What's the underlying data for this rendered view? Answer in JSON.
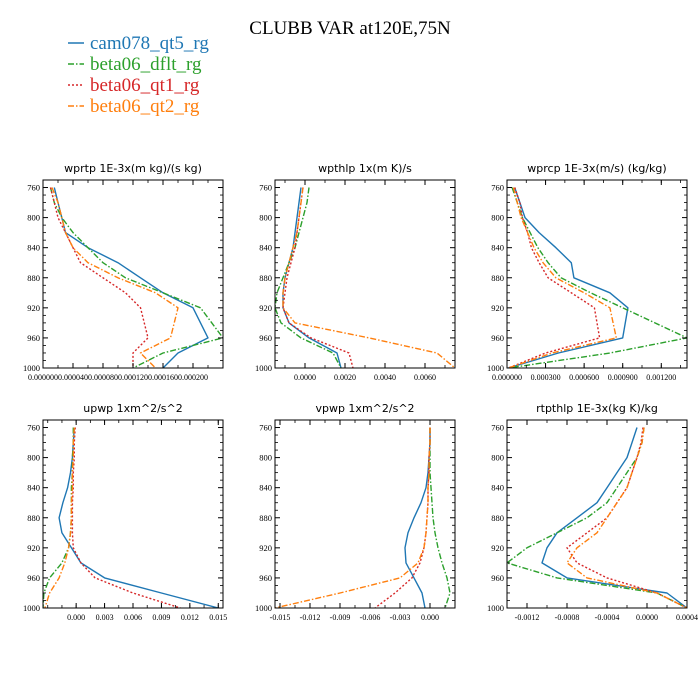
{
  "figure": {
    "title": "CLUBB VAR at120E,75N"
  },
  "legend": [
    {
      "name": "cam078_qt5_rg",
      "color": "#1f77b4",
      "dash": "solid"
    },
    {
      "name": "beta06_dflt_rg",
      "color": "#2ca02c",
      "dash": "dashdot"
    },
    {
      "name": "beta06_qt1_rg",
      "color": "#d62728",
      "dash": "dotted"
    },
    {
      "name": "beta06_qt2_rg",
      "color": "#ff7f0e",
      "dash": "dashdot"
    }
  ],
  "chart_data": [
    {
      "type": "line",
      "title": "wprtp   1E-3x(m kg)/(s kg)",
      "xlim": [
        0,
        0.00024
      ],
      "ylim": [
        1000,
        750
      ],
      "xticks": [
        0,
        4e-05,
        8e-05,
        0.00012,
        0.00016,
        0.0002
      ],
      "xtick_labels": [
        "0.000000",
        "0.000040",
        "0.000080",
        "0.000120",
        "0.000160",
        "0.000200"
      ],
      "yticks": [
        760,
        800,
        840,
        880,
        920,
        960,
        1000
      ],
      "series": [
        {
          "name": "cam078_qt5_rg",
          "x": [
            1.5e-05,
            2e-05,
            2.5e-05,
            3e-05,
            6e-05,
            0.0001,
            0.00013,
            0.00016,
            0.0002,
            0.00022,
            0.00018,
            0.00016
          ],
          "y": [
            760,
            780,
            800,
            820,
            840,
            860,
            880,
            900,
            920,
            960,
            980,
            1000
          ]
        },
        {
          "name": "beta06_dflt_rg",
          "x": [
            1e-05,
            1.5e-05,
            2.5e-05,
            4e-05,
            6e-05,
            8e-05,
            0.00011,
            0.00016,
            0.00021,
            0.00024,
            0.00016,
            0.00012
          ],
          "y": [
            760,
            780,
            800,
            820,
            840,
            860,
            880,
            900,
            920,
            960,
            980,
            1000
          ]
        },
        {
          "name": "beta06_qt1_rg",
          "x": [
            1e-05,
            1.5e-05,
            2e-05,
            3e-05,
            4e-05,
            5e-05,
            8e-05,
            0.00011,
            0.00013,
            0.00014,
            0.00012,
            0.00012
          ],
          "y": [
            760,
            780,
            800,
            820,
            840,
            860,
            880,
            900,
            920,
            960,
            980,
            1000
          ]
        },
        {
          "name": "beta06_qt2_rg",
          "x": [
            1.2e-05,
            2e-05,
            2.5e-05,
            3e-05,
            4e-05,
            6e-05,
            0.0001,
            0.00015,
            0.00018,
            0.00017,
            0.00013,
            0.00015
          ],
          "y": [
            760,
            780,
            800,
            820,
            840,
            860,
            880,
            900,
            920,
            960,
            980,
            1000
          ]
        }
      ]
    },
    {
      "type": "line",
      "title": "wpthlp   1x(m K)/s",
      "xlim": [
        -0.0015,
        0.0075
      ],
      "ylim": [
        1000,
        750
      ],
      "xticks": [
        0,
        0.002,
        0.004,
        0.006
      ],
      "xtick_labels": [
        "0.0000",
        "0.0020",
        "0.0040",
        "0.0060"
      ],
      "yticks": [
        760,
        800,
        840,
        880,
        920,
        960,
        1000
      ],
      "series": [
        {
          "name": "cam078_qt5_rg",
          "x": [
            -0.0002,
            -0.0003,
            -0.0004,
            -0.0005,
            -0.0006,
            -0.0008,
            -0.001,
            -0.0011,
            -0.0011,
            -0.0008,
            0.0002,
            0.0016,
            0.0018
          ],
          "y": [
            760,
            780,
            800,
            820,
            840,
            860,
            880,
            900,
            920,
            940,
            960,
            980,
            1000
          ]
        },
        {
          "name": "beta06_dflt_rg",
          "x": [
            0.0002,
            0.0001,
            -0.0001,
            -0.0003,
            -0.0005,
            -0.0008,
            -0.0011,
            -0.0014,
            -0.0015,
            -0.0012,
            -0.0002,
            0.0014,
            0.0018
          ],
          "y": [
            760,
            780,
            800,
            820,
            840,
            860,
            880,
            900,
            920,
            940,
            960,
            980,
            1000
          ]
        },
        {
          "name": "beta06_qt1_rg",
          "x": [
            -0.0001,
            -0.0002,
            -0.0003,
            -0.0004,
            -0.0005,
            -0.0007,
            -0.0009,
            -0.001,
            -0.0011,
            -0.0008,
            0.0003,
            0.0022,
            0.0024
          ],
          "y": [
            760,
            780,
            800,
            820,
            840,
            860,
            880,
            900,
            920,
            940,
            960,
            980,
            1000
          ]
        },
        {
          "name": "beta06_qt2_rg",
          "x": [
            -0.0001,
            -0.0002,
            -0.0003,
            -0.0004,
            -0.0006,
            -0.0008,
            -0.001,
            -0.0011,
            -0.0011,
            -0.0005,
            0.0032,
            0.0066,
            0.0075
          ],
          "y": [
            760,
            780,
            800,
            820,
            840,
            860,
            880,
            900,
            920,
            940,
            960,
            980,
            1000
          ]
        }
      ]
    },
    {
      "type": "line",
      "title": "wprcp   1E-3x(m/s) (kg/kg)",
      "xlim": [
        0,
        0.0014
      ],
      "ylim": [
        1000,
        750
      ],
      "xticks": [
        0,
        0.0003,
        0.0006,
        0.0009,
        0.0012
      ],
      "xtick_labels": [
        "0.000000",
        "0.000300",
        "0.000600",
        "0.000900",
        "0.001200"
      ],
      "yticks": [
        760,
        800,
        840,
        880,
        920,
        960,
        1000
      ],
      "series": [
        {
          "name": "cam078_qt5_rg",
          "x": [
            6e-05,
            0.0001,
            0.00014,
            0.00025,
            0.00038,
            0.0005,
            0.00052,
            0.0008,
            0.00094,
            0.0009,
            0.0004,
            1e-05
          ],
          "y": [
            760,
            780,
            800,
            820,
            840,
            860,
            880,
            900,
            920,
            960,
            980,
            1000
          ]
        },
        {
          "name": "beta06_dflt_rg",
          "x": [
            4e-05,
            8e-05,
            0.00012,
            0.00018,
            0.00024,
            0.00032,
            0.00042,
            0.00065,
            0.0009,
            0.0014,
            0.0008,
            1e-05
          ],
          "y": [
            760,
            780,
            800,
            820,
            840,
            860,
            880,
            900,
            920,
            960,
            980,
            1000
          ]
        },
        {
          "name": "beta06_qt1_rg",
          "x": [
            6e-05,
            0.0001,
            0.00012,
            0.00016,
            0.00019,
            0.00025,
            0.00032,
            0.0005,
            0.00068,
            0.00072,
            0.0003,
            1e-05
          ],
          "y": [
            760,
            780,
            800,
            820,
            840,
            860,
            880,
            900,
            920,
            960,
            980,
            1000
          ]
        },
        {
          "name": "beta06_qt2_rg",
          "x": [
            5e-05,
            8e-05,
            0.00011,
            0.00016,
            0.00021,
            0.00028,
            0.00038,
            0.0006,
            0.0008,
            0.00085,
            0.00035,
            1e-05
          ],
          "y": [
            760,
            780,
            800,
            820,
            840,
            860,
            880,
            900,
            920,
            960,
            980,
            1000
          ]
        }
      ]
    },
    {
      "type": "line",
      "title": "upwp   1xm^2/s^2",
      "xlim": [
        -0.0035,
        0.0155
      ],
      "ylim": [
        1000,
        750
      ],
      "xticks": [
        0,
        0.003,
        0.006,
        0.009,
        0.012,
        0.015
      ],
      "xtick_labels": [
        "0.000",
        "0.003",
        "0.006",
        "0.009",
        "0.012",
        "0.015"
      ],
      "yticks": [
        760,
        800,
        840,
        880,
        920,
        960,
        1000
      ],
      "series": [
        {
          "name": "cam078_qt5_rg",
          "x": [
            -0.0002,
            -0.0003,
            -0.0004,
            -0.0006,
            -0.0009,
            -0.0014,
            -0.0018,
            -0.0015,
            -0.0005,
            0.0005,
            0.003,
            0.009,
            0.015
          ],
          "y": [
            760,
            780,
            800,
            820,
            840,
            860,
            880,
            900,
            920,
            940,
            960,
            980,
            1000
          ]
        },
        {
          "name": "beta06_dflt_rg",
          "x": [
            -0.0003,
            -0.0003,
            -0.0004,
            -0.0004,
            -0.0005,
            -0.0005,
            -0.0005,
            -0.0006,
            -0.0008,
            -0.0015,
            -0.0028,
            -0.0034,
            -0.0035
          ],
          "y": [
            760,
            780,
            800,
            820,
            840,
            860,
            880,
            900,
            920,
            940,
            960,
            980,
            1000
          ]
        },
        {
          "name": "beta06_qt1_rg",
          "x": [
            -0.0001,
            -0.0002,
            -0.0002,
            -0.0003,
            -0.0003,
            -0.0004,
            -0.0004,
            -0.0004,
            -0.0003,
            0.0005,
            0.002,
            0.006,
            0.011
          ],
          "y": [
            760,
            780,
            800,
            820,
            840,
            860,
            880,
            900,
            920,
            940,
            960,
            980,
            1000
          ]
        },
        {
          "name": "beta06_qt2_rg",
          "x": [
            -0.0002,
            -0.0003,
            -0.0003,
            -0.0004,
            -0.0004,
            -0.0005,
            -0.0005,
            -0.0006,
            -0.0008,
            -0.0012,
            -0.0018,
            -0.0028,
            -0.0033
          ],
          "y": [
            760,
            780,
            800,
            820,
            840,
            860,
            880,
            900,
            920,
            940,
            960,
            980,
            1000
          ]
        }
      ]
    },
    {
      "type": "line",
      "title": "vpwp   1xm^2/s^2",
      "xlim": [
        -0.0155,
        0.0025
      ],
      "ylim": [
        1000,
        750
      ],
      "xticks": [
        -0.015,
        -0.012,
        -0.009,
        -0.006,
        -0.003,
        0
      ],
      "xtick_labels": [
        "-0.015",
        "-0.012",
        "-0.009",
        "-0.006",
        "-0.003",
        "0.000"
      ],
      "yticks": [
        760,
        800,
        840,
        880,
        920,
        960,
        1000
      ],
      "series": [
        {
          "name": "cam078_qt5_rg",
          "x": [
            0,
            0,
            -0.0001,
            -0.0002,
            -0.0004,
            -0.0009,
            -0.0016,
            -0.0022,
            -0.0025,
            -0.0024,
            -0.0016,
            -0.0008,
            -0.0005
          ],
          "y": [
            760,
            780,
            800,
            820,
            840,
            860,
            880,
            900,
            920,
            940,
            960,
            980,
            1000
          ]
        },
        {
          "name": "beta06_dflt_rg",
          "x": [
            0,
            0,
            0,
            0,
            0.0001,
            0.0002,
            0.0003,
            0.0005,
            0.0008,
            0.0012,
            0.0017,
            0.002,
            0.0015
          ],
          "y": [
            760,
            780,
            800,
            820,
            840,
            860,
            880,
            900,
            920,
            940,
            960,
            980,
            1000
          ]
        },
        {
          "name": "beta06_qt1_rg",
          "x": [
            0,
            0,
            -0.0001,
            -0.0001,
            -0.0002,
            -0.0002,
            -0.0003,
            -0.0004,
            -0.0006,
            -0.001,
            -0.0018,
            -0.0035,
            -0.0055
          ],
          "y": [
            760,
            780,
            800,
            820,
            840,
            860,
            880,
            900,
            920,
            940,
            960,
            980,
            1000
          ]
        },
        {
          "name": "beta06_qt2_rg",
          "x": [
            0,
            0,
            -0.0001,
            -0.0001,
            -0.0002,
            -0.0002,
            -0.0003,
            -0.0004,
            -0.0006,
            -0.0012,
            -0.003,
            -0.009,
            -0.0155
          ],
          "y": [
            760,
            780,
            800,
            820,
            840,
            860,
            880,
            900,
            920,
            940,
            960,
            980,
            1000
          ]
        }
      ]
    },
    {
      "type": "line",
      "title": "rtpthlp   1E-3x(kg K)/kg",
      "xlim": [
        -0.0014,
        0.0004
      ],
      "ylim": [
        1000,
        750
      ],
      "xticks": [
        -0.0012,
        -0.0008,
        -0.0004,
        0,
        0.0004
      ],
      "xtick_labels": [
        "-0.0012",
        "-0.0008",
        "-0.0004",
        "0.0000",
        "0.0004"
      ],
      "yticks": [
        760,
        800,
        840,
        880,
        920,
        960,
        1000
      ],
      "series": [
        {
          "name": "cam078_qt5_rg",
          "x": [
            -0.0001,
            -0.00015,
            -0.0002,
            -0.0003,
            -0.0004,
            -0.0005,
            -0.0007,
            -0.0009,
            -0.001,
            -0.00105,
            -0.0008,
            0.0002,
            0.0004
          ],
          "y": [
            760,
            780,
            800,
            820,
            840,
            860,
            880,
            900,
            920,
            940,
            960,
            980,
            1000
          ]
        },
        {
          "name": "beta06_dflt_rg",
          "x": [
            -3e-05,
            -5e-05,
            -0.0001,
            -0.0002,
            -0.0003,
            -0.0004,
            -0.0006,
            -0.0009,
            -0.0012,
            -0.0014,
            -0.0009,
            0.0001,
            0.0004
          ],
          "y": [
            760,
            780,
            800,
            820,
            840,
            860,
            880,
            900,
            920,
            940,
            960,
            980,
            1000
          ]
        },
        {
          "name": "beta06_qt1_rg",
          "x": [
            -4e-05,
            -6e-05,
            -0.0001,
            -0.00015,
            -0.0002,
            -0.0003,
            -0.0004,
            -0.0006,
            -0.0008,
            -0.0007,
            -0.0004,
            0.0001,
            0.0004
          ],
          "y": [
            760,
            780,
            800,
            820,
            840,
            860,
            880,
            900,
            920,
            940,
            960,
            980,
            1000
          ]
        },
        {
          "name": "beta06_qt2_rg",
          "x": [
            -3e-05,
            -5e-05,
            -0.0001,
            -0.00015,
            -0.0002,
            -0.0003,
            -0.0004,
            -0.0005,
            -0.0007,
            -0.0008,
            -0.0006,
            0.0001,
            0.0004
          ],
          "y": [
            760,
            780,
            800,
            820,
            840,
            860,
            880,
            900,
            920,
            940,
            960,
            980,
            1000
          ]
        }
      ]
    }
  ]
}
